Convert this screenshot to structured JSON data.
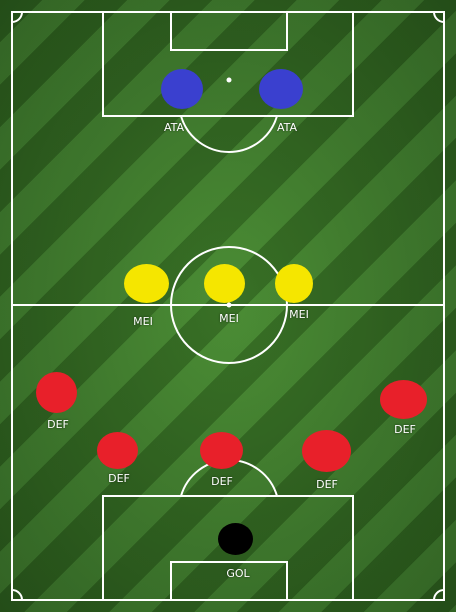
{
  "colors": {
    "attacker": "#3a40cf",
    "midfielder": "#f5e600",
    "defender": "#e8202a",
    "goalkeeper": "#000000",
    "lines": "#ffffff"
  },
  "players": [
    {
      "role": "attacker",
      "label": "ATA"
    },
    {
      "role": "attacker",
      "label": "ATA"
    },
    {
      "role": "midfielder",
      "label": "MEI"
    },
    {
      "role": "midfielder",
      "label": "MEI"
    },
    {
      "role": "midfielder",
      "label": "MEI"
    },
    {
      "role": "defender",
      "label": "DEF"
    },
    {
      "role": "defender",
      "label": "DEF"
    },
    {
      "role": "defender",
      "label": "DEF"
    },
    {
      "role": "defender",
      "label": "DEF"
    },
    {
      "role": "defender",
      "label": "DEF"
    },
    {
      "role": "goalkeeper",
      "label": "GOL"
    }
  ]
}
